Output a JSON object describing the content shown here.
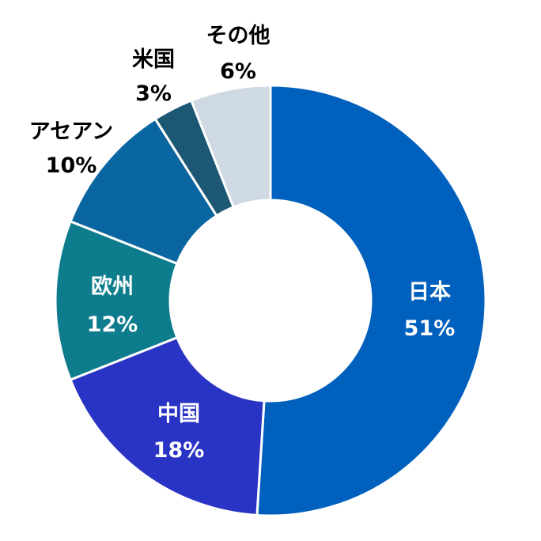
{
  "chart_data": {
    "type": "pie",
    "title": "",
    "slices": [
      {
        "label": "日本",
        "value_label": "51%",
        "value": 51,
        "color": "#0060bd",
        "text_color": "#ffffff"
      },
      {
        "label": "中国",
        "value_label": "18%",
        "value": 18,
        "color": "#2a34c4",
        "text_color": "#ffffff"
      },
      {
        "label": "欧州",
        "value_label": "12%",
        "value": 12,
        "color": "#0d7c8c",
        "text_color": "#ffffff"
      },
      {
        "label": "アセアン",
        "value_label": "10%",
        "value": 10,
        "color": "#0a66a0",
        "text_color": "#000000"
      },
      {
        "label": "米国",
        "value_label": "3%",
        "value": 3,
        "color": "#1c5874",
        "text_color": "#000000"
      },
      {
        "label": "その他",
        "value_label": "6%",
        "value": 6,
        "color": "#cfd9e3",
        "text_color": "#000000"
      }
    ]
  }
}
